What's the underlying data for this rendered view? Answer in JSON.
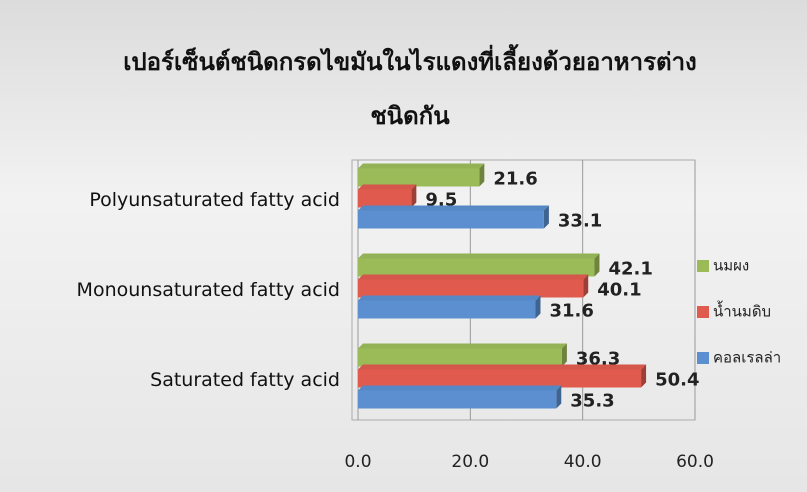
{
  "chart_data": {
    "type": "bar",
    "orientation": "horizontal",
    "title": "เปอร์เซ็นต์ชนิดกรดไขมันในไรแดงที่เลี้ยงด้วยอาหารต่างชนิดกัน",
    "categories": [
      "Polyunsaturated fatty acid",
      "Monounsaturated fatty acid",
      "Saturated fatty acid"
    ],
    "series": [
      {
        "name": "นมผง",
        "color": "#9bbb59",
        "values": [
          21.6,
          42.1,
          36.3
        ]
      },
      {
        "name": "น้ำนมดิบ",
        "color": "#e05a4e",
        "values": [
          9.5,
          40.1,
          50.4
        ]
      },
      {
        "name": "คอลเรลล่า",
        "color": "#5b8fd0",
        "values": [
          33.1,
          31.6,
          35.3
        ]
      }
    ],
    "xlim": [
      0,
      60
    ],
    "xticks": [
      {
        "value": 0,
        "label": "0.0"
      },
      {
        "value": 20,
        "label": "20.0"
      },
      {
        "value": 40,
        "label": "40.0"
      },
      {
        "value": 60,
        "label": "60.0"
      }
    ],
    "grid": true,
    "legend": "right"
  }
}
